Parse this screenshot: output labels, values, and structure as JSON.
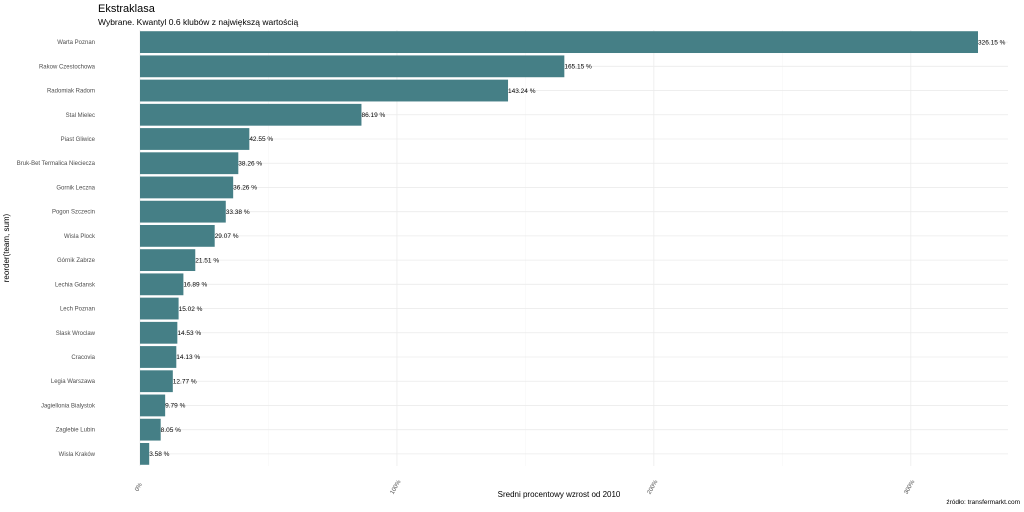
{
  "header": {
    "title": "Ekstraklasa",
    "subtitle": "Wybrane. Kwantyl 0.6 klubów z największą wartością"
  },
  "caption": "źródło: transfermarkt.com",
  "chart_data": {
    "type": "bar",
    "orientation": "horizontal",
    "title": "Ekstraklasa",
    "subtitle": "Wybrane. Kwantyl 0.6 klubów z największą wartością",
    "xlabel": "Sredni procentowy wzrost od 2010",
    "ylabel": "reorder(team, sum)",
    "bar_color": "#457f86",
    "categories": [
      "Warta Poznan",
      "Rakow Czestochowa",
      "Radomiak Radom",
      "Stal Mielec",
      "Piast Gliwice",
      "Bruk-Bet Termalica Nieciecza",
      "Gornik Leczna",
      "Pogon Szczecin",
      "Wisla Plock",
      "Górnik Zabrze",
      "Lechia Gdansk",
      "Lech Poznan",
      "Slask Wroclaw",
      "Cracovia",
      "Legia Warszawa",
      "Jagiellonia Bialystok",
      "Zaglebie Lubin",
      "Wisla Kraków"
    ],
    "values": [
      326.15,
      165.15,
      143.24,
      86.19,
      42.55,
      38.26,
      36.26,
      33.38,
      29.07,
      21.51,
      16.89,
      15.02,
      14.53,
      14.13,
      12.77,
      9.79,
      8.05,
      3.58
    ],
    "value_labels": [
      "326.15 %",
      "165.15 %",
      "143.24 %",
      "86.19 %",
      "42.55 %",
      "38.26 %",
      "36.26 %",
      "33.38 %",
      "29.07 %",
      "21.51 %",
      "16.89 %",
      "15.02 %",
      "14.53 %",
      "14.13 %",
      "12.77 %",
      "9.79 %",
      "8.05 %",
      "3.58 %"
    ],
    "x_ticks": [
      0,
      100,
      200,
      300
    ],
    "x_tick_labels": [
      "0%",
      "100%",
      "200%",
      "300%"
    ],
    "xlim": [
      0,
      326.15
    ],
    "grid": true
  }
}
